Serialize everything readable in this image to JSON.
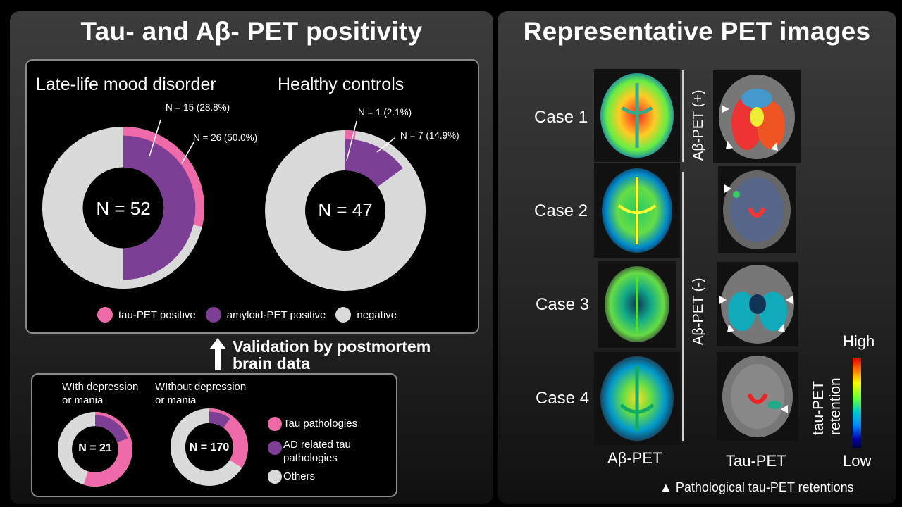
{
  "left_panel": {
    "title": "Tau- and Aβ- PET positivity",
    "groups": [
      {
        "label": "Late-life mood disorder",
        "center": "N = 52",
        "annot_tau": "N = 15 (28.8%)",
        "annot_amyloid": "N = 26 (50.0%)"
      },
      {
        "label": "Healthy controls",
        "center": "N = 47",
        "annot_tau": "N = 1 (2.1%)",
        "annot_amyloid": "N = 7 (14.9%)"
      }
    ],
    "legend": [
      "tau-PET positive",
      "amyloid-PET positive",
      "negative"
    ],
    "validation_text_1": "Validation by postmortem",
    "validation_text_2": "brain data",
    "bottom": {
      "groups": [
        {
          "label_1": "WIth depression",
          "label_2": "or mania",
          "center": "N = 21"
        },
        {
          "label_1": "WIthout depression",
          "label_2": "or mania",
          "center": "N = 170"
        }
      ],
      "legend": [
        "Tau pathologies",
        "AD related tau",
        "pathologies",
        "Others"
      ]
    }
  },
  "right_panel": {
    "title": "Representative PET images",
    "cases": [
      "Case 1",
      "Case 2",
      "Case 3",
      "Case 4"
    ],
    "ab_pos": "Aβ-PET  (+)",
    "ab_neg": "Aβ-PET (-)",
    "col_ab": "Aβ-PET",
    "col_tau": "Tau-PET",
    "colorbar": {
      "high": "High",
      "low": "Low",
      "title_1": "tau-PET",
      "title_2": "retention"
    },
    "footnote": "▲ Pathological tau-PET retentions"
  },
  "colors": {
    "tau": "#ef6aa8",
    "amyloid": "#7d3f95",
    "negative": "#dadada"
  },
  "chart_data": [
    {
      "type": "pie",
      "title": "Late-life mood disorder",
      "total": 52,
      "series": [
        {
          "name": "tau-PET positive",
          "values": [
            28.8
          ]
        },
        {
          "name": "amyloid-PET positive",
          "values": [
            50.0
          ]
        }
      ]
    },
    {
      "type": "pie",
      "title": "Healthy controls",
      "total": 47,
      "series": [
        {
          "name": "tau-PET positive",
          "values": [
            2.1
          ]
        },
        {
          "name": "amyloid-PET positive",
          "values": [
            14.9
          ]
        }
      ]
    },
    {
      "type": "pie",
      "title": "WIth depression or mania",
      "total": 21,
      "series": [
        {
          "name": "Tau pathologies",
          "values": [
            55
          ]
        },
        {
          "name": "AD related tau pathologies",
          "values": [
            20
          ]
        }
      ]
    },
    {
      "type": "pie",
      "title": "WIthout depression or mania",
      "total": 170,
      "series": [
        {
          "name": "Tau pathologies",
          "values": [
            34
          ]
        },
        {
          "name": "AD related tau pathologies",
          "values": [
            10
          ]
        }
      ]
    }
  ]
}
